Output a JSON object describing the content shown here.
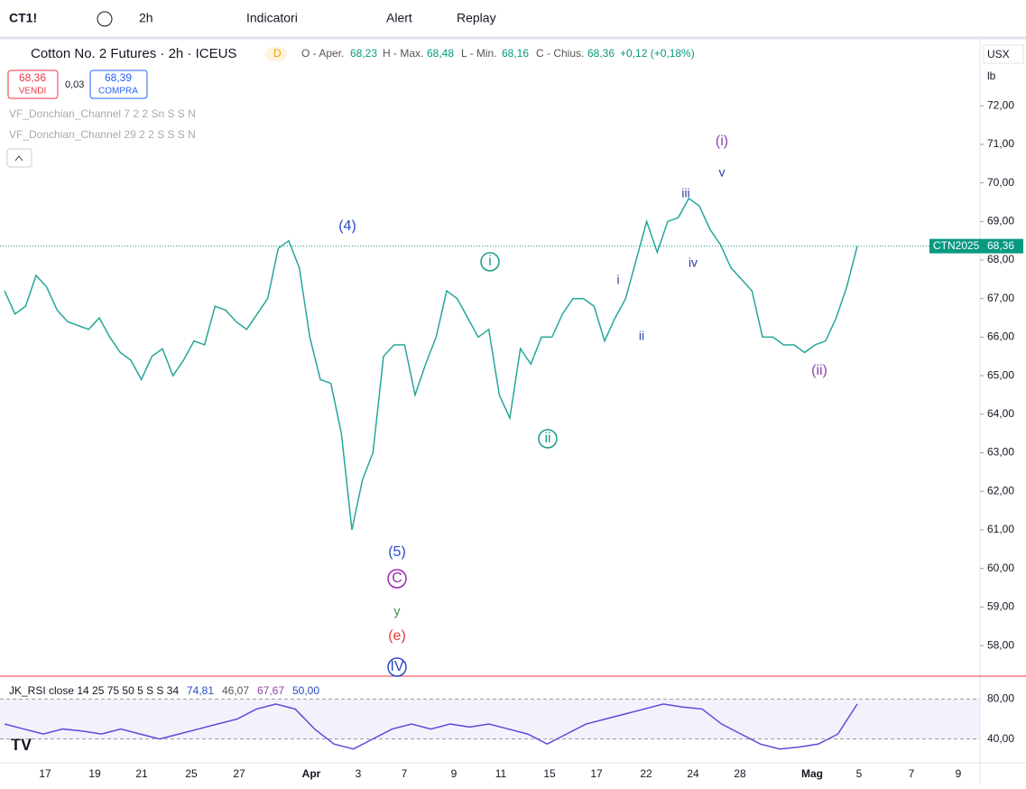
{
  "toolbar": {
    "symbol": "CT1!",
    "interval": "2h",
    "indicators": "Indicatori",
    "alert": "Alert",
    "replay": "Replay"
  },
  "header": {
    "title": "Cotton No. 2 Futures · 2h · ICEUS",
    "badge": "D",
    "open_label": "O - Aper.",
    "open": "68,23",
    "high_label": "H - Max.",
    "high": "68,48",
    "low_label": "L - Min.",
    "low": "68,16",
    "close_label": "C - Chius.",
    "close": "68,36",
    "change": "+0,12 (+0,18%)"
  },
  "trade": {
    "sell_price": "68,36",
    "sell": "VENDI",
    "spread": "0,03",
    "buy_price": "68,39",
    "buy": "COMPRA"
  },
  "indicators": [
    "VF_Donchian_Channel 7 2 2 Sn S S N",
    "VF_Donchian_Channel 29 2 2 S S S N"
  ],
  "currency": "USX",
  "unit": "lb",
  "chart_data": {
    "type": "line",
    "values": [
      67.2,
      66.6,
      66.8,
      67.6,
      67.3,
      66.7,
      66.4,
      66.3,
      66.2,
      66.5,
      66.0,
      65.6,
      65.4,
      64.9,
      65.5,
      65.7,
      65.0,
      65.4,
      65.9,
      65.8,
      66.8,
      66.7,
      66.4,
      66.2,
      66.6,
      67.0,
      68.3,
      68.5,
      67.8,
      66.0,
      64.9,
      64.8,
      63.5,
      61.0,
      62.3,
      63.0,
      65.5,
      65.8,
      65.8,
      64.5,
      65.3,
      66.0,
      67.2,
      67.0,
      66.5,
      66.0,
      66.2,
      64.5,
      63.9,
      65.7,
      65.3,
      66.0,
      66.0,
      66.6,
      67.0,
      67.0,
      66.8,
      65.9,
      66.5,
      67.0,
      68.0,
      69.0,
      68.2,
      69.0,
      69.1,
      69.6,
      69.4,
      68.8,
      68.4,
      67.8,
      67.5,
      67.2,
      66.0,
      66.0,
      65.8,
      65.8,
      65.6,
      65.8,
      65.9,
      66.5,
      67.3,
      68.36
    ],
    "color": "#26a69a",
    "ylim": [
      57.23,
      73.69
    ],
    "yticks": [
      {
        "value": 72,
        "label": "72,00"
      },
      {
        "value": 71,
        "label": "71,00"
      },
      {
        "value": 70,
        "label": "70,00"
      },
      {
        "value": 69,
        "label": "69,00"
      },
      {
        "value": 68,
        "label": "68,00"
      },
      {
        "value": 67,
        "label": "67,00"
      },
      {
        "value": 66,
        "label": "66,00"
      },
      {
        "value": 65,
        "label": "65,00"
      },
      {
        "value": 64,
        "label": "64,00"
      },
      {
        "value": 63,
        "label": "63,00"
      },
      {
        "value": 62,
        "label": "62,00"
      },
      {
        "value": 61,
        "label": "61,00"
      },
      {
        "value": 60,
        "label": "60,00"
      },
      {
        "value": 59,
        "label": "59,00"
      },
      {
        "value": 58,
        "label": "58,00"
      }
    ],
    "last_price": {
      "value": 68.36,
      "name": "CTN2025",
      "label": "68,36"
    },
    "x_labels": [
      "17",
      "19",
      "21",
      "25",
      "27",
      "Apr",
      "3",
      "7",
      "9",
      "11",
      "15",
      "17",
      "22",
      "24",
      "28",
      "Mag",
      "5",
      "7",
      "9"
    ],
    "annotations": [
      {
        "text": "(4)",
        "color": "#2a4ac8"
      },
      {
        "text": "i",
        "color": "#1a9a8a",
        "circled": true
      },
      {
        "text": "(5)",
        "color": "#2a4ac8"
      },
      {
        "text": "C",
        "color": "#9c27b0",
        "circled": true
      },
      {
        "text": "y",
        "color": "#3d8b3d"
      },
      {
        "text": "(e)",
        "color": "#e53935"
      },
      {
        "text": "IV",
        "color": "#2a4ac8",
        "circled": true
      },
      {
        "text": "ii",
        "color": "#1a9a8a",
        "circled": true
      },
      {
        "text": "i",
        "color": "#2c3e9e"
      },
      {
        "text": "ii",
        "color": "#2c3e9e"
      },
      {
        "text": "iii",
        "color": "#2c3e9e"
      },
      {
        "text": "iv",
        "color": "#2c3e9e"
      },
      {
        "text": "v",
        "color": "#2c3e9e"
      },
      {
        "text": "(i)",
        "color": "#8e44ad"
      },
      {
        "text": "(ii)",
        "color": "#8e44ad"
      }
    ]
  },
  "rsi": {
    "title": "JK_RSI close 14 25 75 50 5 S S 34",
    "readings": [
      "74,81",
      "46,07",
      "67,67",
      "50,00"
    ],
    "values": [
      55,
      50,
      45,
      50,
      48,
      45,
      50,
      45,
      40,
      45,
      50,
      55,
      60,
      70,
      75,
      70,
      50,
      35,
      30,
      40,
      50,
      55,
      50,
      55,
      52,
      55,
      50,
      45,
      35,
      45,
      55,
      60,
      65,
      70,
      75,
      72,
      70,
      55,
      45,
      35,
      30,
      32,
      35,
      45,
      75
    ],
    "color": "#5b4bd6",
    "ylim": [
      18,
      102
    ],
    "yticks": [
      {
        "value": 80,
        "label": "80,00"
      },
      {
        "value": 40,
        "label": "40,00"
      }
    ]
  }
}
